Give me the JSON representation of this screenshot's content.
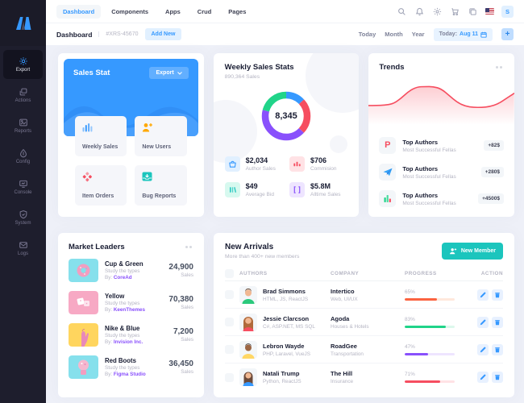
{
  "colors": {
    "accent": "#3699FF",
    "teal": "#1BC5BD",
    "red": "#F64E60",
    "purple": "#8950FC",
    "orange": "#FFA800",
    "page_bg": "#EEF0F8",
    "sidebar_bg": "#1E1E2D"
  },
  "topbar": {
    "tabs": [
      {
        "label": "Dashboard",
        "active": true
      },
      {
        "label": "Components"
      },
      {
        "label": "Apps"
      },
      {
        "label": "Crud"
      },
      {
        "label": "Pages"
      }
    ],
    "user_initial": "S"
  },
  "subheader": {
    "title": "Dashboard",
    "code": "#XRS-45670",
    "add_new": "Add New",
    "ranges": [
      "Today",
      "Month",
      "Year"
    ],
    "date_prefix": "Today:",
    "date_value": "Aug 11",
    "plus": "+"
  },
  "sidebar": {
    "items": [
      {
        "label": "Export",
        "icon": "gear-icon",
        "active": true
      },
      {
        "label": "Actions",
        "icon": "layers-icon"
      },
      {
        "label": "Reports",
        "icon": "image-icon"
      },
      {
        "label": "Config",
        "icon": "droplet-icon"
      },
      {
        "label": "Console",
        "icon": "monitor-icon"
      },
      {
        "label": "System",
        "icon": "shield-icon"
      },
      {
        "label": "Logs",
        "icon": "mail-icon"
      }
    ]
  },
  "sales_stat": {
    "title": "Sales Stat",
    "export_label": "Export",
    "tiles": [
      {
        "label": "Weekly Sales",
        "icon": "bar-chart-icon"
      },
      {
        "label": "New Users",
        "icon": "user-plus-icon"
      },
      {
        "label": "Item Orders",
        "icon": "diamonds-icon"
      },
      {
        "label": "Bug Reports",
        "icon": "inbox-icon"
      }
    ]
  },
  "weekly_stats": {
    "title": "Weekly Sales Stats",
    "subtitle": "890,364 Sales",
    "center": "8,345",
    "stats": [
      {
        "value": "$2,034",
        "label": "Author Sales",
        "icon": "basket-icon",
        "color": "#3699FF",
        "bg": "#E1F0FF"
      },
      {
        "value": "$706",
        "label": "Commision",
        "icon": "candles-icon",
        "color": "#F64E60",
        "bg": "#FFE2E5"
      },
      {
        "value": "$49",
        "label": "Average Bid",
        "icon": "bars-icon",
        "color": "#1BC5BD",
        "bg": "#D7F9EF"
      },
      {
        "value": "$5.8M",
        "label": "Alltime Sales",
        "icon": "brackets-icon",
        "color": "#8950FC",
        "bg": "#EEE5FF"
      }
    ]
  },
  "trends": {
    "title": "Trends",
    "items": [
      {
        "title": "Top Authors",
        "subtitle": "Most Successful Fellas",
        "badge": "+82$",
        "icon": "pinterest-icon"
      },
      {
        "title": "Top Authors",
        "subtitle": "Most Successful Fellas",
        "badge": "+280$",
        "icon": "paper-plane-icon"
      },
      {
        "title": "Top Authors",
        "subtitle": "Most Successful Fellas",
        "badge": "+4500$",
        "icon": "chart-glyph-icon"
      }
    ]
  },
  "market_leaders": {
    "title": "Market Leaders",
    "items": [
      {
        "name": "Cup & Green",
        "desc": "Study the types",
        "by": "By:",
        "vendor": "CoreAd",
        "value": "24,900",
        "unit": "Sales"
      },
      {
        "name": "Yellow",
        "desc": "Study the types",
        "by": "By:",
        "vendor": "KeenThemes",
        "value": "70,380",
        "unit": "Sales"
      },
      {
        "name": "Nike & Blue",
        "desc": "Study the types",
        "by": "By:",
        "vendor": "Invision Inc.",
        "value": "7,200",
        "unit": "Sales"
      },
      {
        "name": "Red Boots",
        "desc": "Study the types",
        "by": "By:",
        "vendor": "Figma Studio",
        "value": "36,450",
        "unit": "Sales"
      }
    ]
  },
  "new_arrivals": {
    "title": "New Arrivals",
    "subtitle": "More than 400+ new members",
    "button": "New Member",
    "columns": [
      "Authors",
      "Company",
      "Progress",
      "Action"
    ],
    "rows": [
      {
        "name": "Brad Simmons",
        "skills": "HTML, JS, ReactJS",
        "company": "Intertico",
        "sector": "Web, UI/UX",
        "progress": "65%",
        "pct": 65,
        "bar_color": "#FB6340",
        "track_color": "#FFE8DC"
      },
      {
        "name": "Jessie Clarcson",
        "skills": "C#, ASP.NET, MS SQL",
        "company": "Agoda",
        "sector": "Houses & Hotels",
        "progress": "83%",
        "pct": 83,
        "bar_color": "#20D489",
        "track_color": "#DCF8EC"
      },
      {
        "name": "Lebron Wayde",
        "skills": "PHP, Laravel, VueJS",
        "company": "RoadGee",
        "sector": "Transportation",
        "progress": "47%",
        "pct": 47,
        "bar_color": "#8950FC",
        "track_color": "#EEE5FF"
      },
      {
        "name": "Natali Trump",
        "skills": "Python, ReactJS",
        "company": "The Hill",
        "sector": "Insurance",
        "progress": "71%",
        "pct": 71,
        "bar_color": "#F64E60",
        "track_color": "#FFE2E5"
      }
    ]
  },
  "chart_data": [
    {
      "id": "weekly-sales-donut",
      "type": "pie",
      "variant": "donut",
      "center_label": "8,345",
      "start_angle_deg": -90,
      "segments": [
        {
          "name": "blue",
          "value": 13,
          "color": "#3699FF"
        },
        {
          "name": "red",
          "value": 24,
          "color": "#F64E60"
        },
        {
          "name": "purple",
          "value": 42,
          "color": "#8950FC"
        },
        {
          "name": "green",
          "value": 21,
          "color": "#20D489"
        }
      ]
    },
    {
      "id": "trends-sparkline",
      "type": "line",
      "color": "#F64E60",
      "area_fill": "red-gradient",
      "axes": "hidden",
      "values": [
        30,
        30,
        31,
        34,
        48,
        68,
        79,
        80,
        80,
        74,
        56,
        38,
        28,
        25,
        25,
        27,
        34,
        48,
        62
      ]
    },
    {
      "id": "sales-stat-wave",
      "type": "area",
      "color": "#3699FF"
    }
  ]
}
